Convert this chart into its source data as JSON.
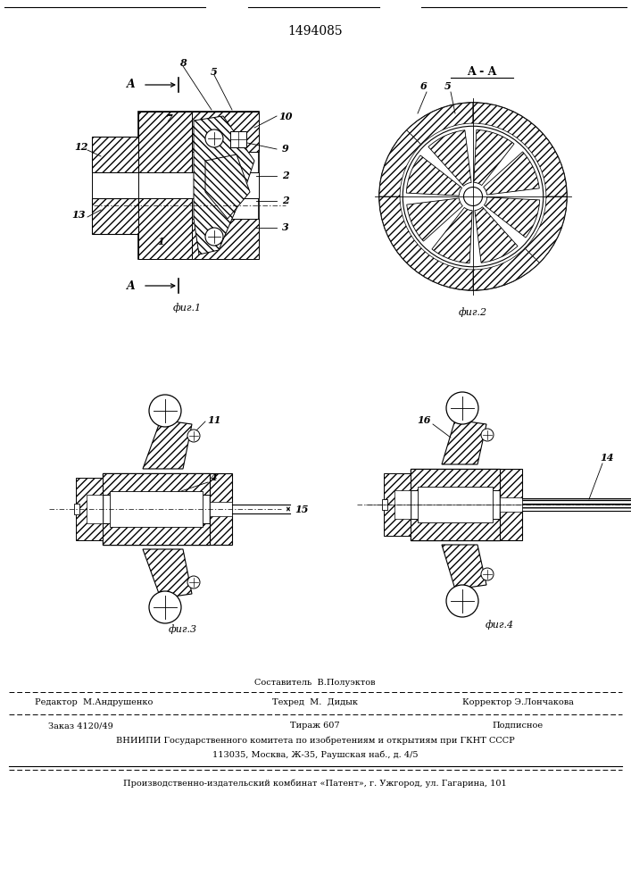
{
  "patent_number": "1494085",
  "bg_color": "#ffffff",
  "line_color": "#000000",
  "footer_text_1": "Составитель  В.Полуэктов",
  "footer_text_2a": "Редактор  М.Андрушенко",
  "footer_text_2b": "Техред  М.  Дидык",
  "footer_text_2c": "Корректор Э.Лончакова",
  "footer_text_3a": "Заказ 4120/49",
  "footer_text_3b": "Тираж 607",
  "footer_text_3c": "Подписное",
  "footer_text_4": "ВНИИПИ Государственного комитета по изобретениям и открытиям при ГКНТ СССР",
  "footer_text_5": "113035, Москва, Ж-35, Раушская наб., д. 4/5",
  "footer_text_6": "Производственно-издательский комбинат «Патент», г. Ужгород, ул. Гагарина, 101",
  "fig_labels": [
    "фиг.1",
    "фиг.2",
    "фиг.3",
    "фиг.4"
  ],
  "section_label": "A - A"
}
